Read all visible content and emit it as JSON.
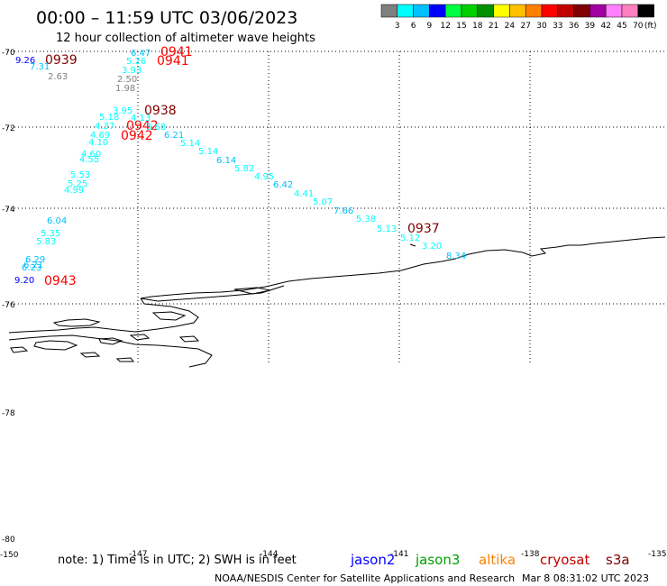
{
  "header": {
    "title": "00:00 – 11:59 UTC 03/06/2023",
    "subtitle": "12 hour collection of altimeter wave heights"
  },
  "legend": {
    "unit": "(ft)",
    "colors": [
      "#808080",
      "#00ffff",
      "#00c0ff",
      "#0000ff",
      "#00ff40",
      "#00d000",
      "#009000",
      "#ffff00",
      "#ffc000",
      "#ff8000",
      "#ff0000",
      "#c00000",
      "#800000",
      "#a000a0",
      "#ff80ff",
      "#ff80c0",
      "#000000"
    ],
    "labels": [
      "3",
      "6",
      "9",
      "12",
      "15",
      "18",
      "21",
      "24",
      "27",
      "30",
      "33",
      "36",
      "39",
      "42",
      "45",
      "70"
    ]
  },
  "axes": {
    "lat_labels": [
      {
        "text": "-70",
        "value": -70
      },
      {
        "text": "-72",
        "value": -72
      },
      {
        "text": "-74",
        "value": -74
      },
      {
        "text": "-76",
        "value": -76
      },
      {
        "text": "-78",
        "value": -78
      },
      {
        "text": "-80",
        "value": -80
      }
    ],
    "lon_labels": [
      {
        "text": "-150",
        "value": -150
      },
      {
        "text": "-147",
        "value": -147
      },
      {
        "text": "-144",
        "value": -144
      },
      {
        "text": "-141",
        "value": -141
      },
      {
        "text": "-138",
        "value": -138
      },
      {
        "text": "-135",
        "value": -135
      }
    ]
  },
  "passes": [
    {
      "label": "0939",
      "color": "#800000"
    },
    {
      "label": "0941",
      "color": "#ff0000"
    },
    {
      "label": "0941",
      "color": "#ff0000"
    },
    {
      "label": "0938",
      "color": "#800000"
    },
    {
      "label": "0942",
      "color": "#ff0000"
    },
    {
      "label": "0942",
      "color": "#ff0000"
    },
    {
      "label": "0937",
      "color": "#800000"
    },
    {
      "label": "0943",
      "color": "#ff0000"
    }
  ],
  "wave_heights": [
    {
      "value": "9.26",
      "color": "#0000ff"
    },
    {
      "value": "7.31",
      "color": "#00c0ff"
    },
    {
      "value": "2.63",
      "color": "#808080"
    },
    {
      "value": "6.47",
      "color": "#00c0ff"
    },
    {
      "value": "5.26",
      "color": "#00ffff"
    },
    {
      "value": "3.93",
      "color": "#00ffff"
    },
    {
      "value": "2.50",
      "color": "#808080"
    },
    {
      "value": "1.98",
      "color": "#808080"
    },
    {
      "value": "3.95",
      "color": "#00ffff"
    },
    {
      "value": "5.18",
      "color": "#00ffff"
    },
    {
      "value": "4.13",
      "color": "#00ffff"
    },
    {
      "value": "4.37",
      "color": "#00ffff"
    },
    {
      "value": "4.69",
      "color": "#00ffff"
    },
    {
      "value": "4.10",
      "color": "#00ffff"
    },
    {
      "value": "4.60",
      "color": "#00ffff"
    },
    {
      "value": "4.55",
      "color": "#00ffff"
    },
    {
      "value": "5.53",
      "color": "#00ffff"
    },
    {
      "value": "5.25",
      "color": "#00ffff"
    },
    {
      "value": "4.99",
      "color": "#00ffff"
    },
    {
      "value": "3.68",
      "color": "#00ffff"
    },
    {
      "value": "6.21",
      "color": "#00c0ff"
    },
    {
      "value": "5.14",
      "color": "#00ffff"
    },
    {
      "value": "5.14",
      "color": "#00ffff"
    },
    {
      "value": "6.14",
      "color": "#00c0ff"
    },
    {
      "value": "5.82",
      "color": "#00ffff"
    },
    {
      "value": "4.95",
      "color": "#00ffff"
    },
    {
      "value": "6.42",
      "color": "#00c0ff"
    },
    {
      "value": "4.41",
      "color": "#00ffff"
    },
    {
      "value": "5.07",
      "color": "#00ffff"
    },
    {
      "value": "7.66",
      "color": "#00c0ff"
    },
    {
      "value": "5.38",
      "color": "#00ffff"
    },
    {
      "value": "5.13",
      "color": "#00ffff"
    },
    {
      "value": "5.12",
      "color": "#00ffff"
    },
    {
      "value": "3.20",
      "color": "#00ffff"
    },
    {
      "value": "8.34",
      "color": "#00c0ff"
    },
    {
      "value": "6.04",
      "color": "#00c0ff"
    },
    {
      "value": "5.35",
      "color": "#00ffff"
    },
    {
      "value": "5.83",
      "color": "#00ffff"
    },
    {
      "value": "6.29",
      "color": "#00c0ff"
    },
    {
      "value": "6.21",
      "color": "#00c0ff"
    },
    {
      "value": "6.23",
      "color": "#00c0ff"
    },
    {
      "value": "9.20",
      "color": "#0000ff"
    }
  ],
  "footer": {
    "note": "note: 1) Time is in UTC; 2) SWH is in feet",
    "satellites": [
      {
        "name": "jason2",
        "color": "#0000ff"
      },
      {
        "name": "jason3",
        "color": "#00a000"
      },
      {
        "name": "altika",
        "color": "#ff8000"
      },
      {
        "name": "cryosat",
        "color": "#c00000"
      },
      {
        "name": "s3a",
        "color": "#800000"
      }
    ],
    "credit": "NOAA/NESDIS Center for Satellite Applications and Research",
    "timestamp": "Mar  8 08:31:02 UTC 2023"
  }
}
